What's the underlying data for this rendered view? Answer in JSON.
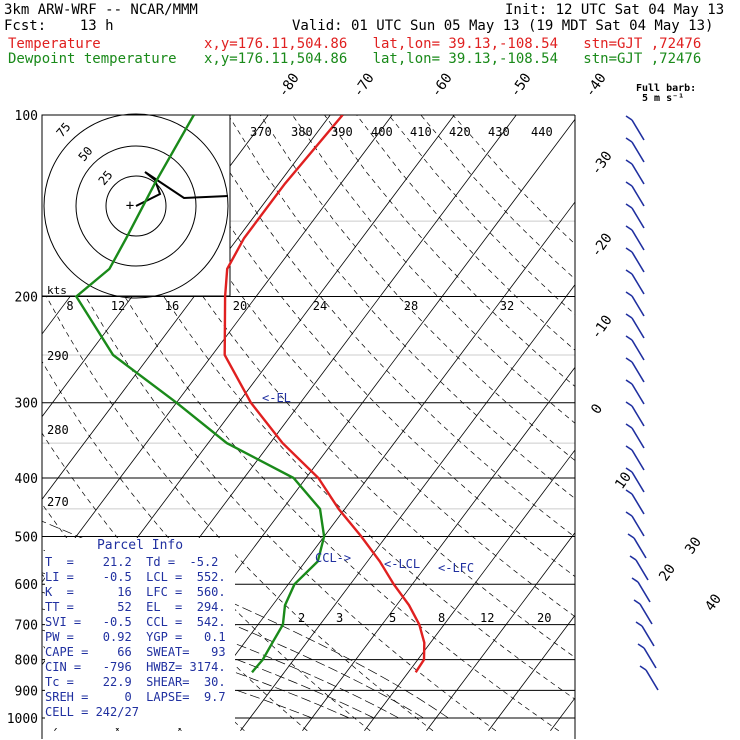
{
  "header": {
    "title": "3km ARW-WRF -- NCAR/MMM",
    "init": "Init: 12 UTC Sat 04 May 13",
    "fcst": "Fcst:    13 h",
    "valid": "Valid: 01 UTC Sun 05 May 13 (19 MDT Sat 04 May 13)",
    "temp_label": "Temperature",
    "dew_label": "Dewpoint temperature",
    "loc_temp": "x,y=176.11,504.86   lat,lon= 39.13,-108.54   stn=GJT ,72476",
    "loc_dew": "x,y=176.11,504.86   lat,lon= 39.13,-108.54   stn=GJT ,72476",
    "barb_legend_1": "Full barb:",
    "barb_legend_2": "5 m s⁻¹"
  },
  "chart_data": {
    "type": "line",
    "title": "",
    "pressure_levels": [
      "100",
      "200",
      "300",
      "400",
      "500",
      "600",
      "700",
      "800",
      "900",
      "1000"
    ],
    "isotherm_labels": [
      "-80",
      "-70",
      "-60",
      "-50",
      "-40",
      "-30",
      "-20",
      "-10",
      "0",
      "10",
      "20",
      "30",
      "40"
    ],
    "theta_labels": [
      "370",
      "380",
      "390",
      "400",
      "410",
      "420",
      "430",
      "440",
      "290",
      "280",
      "270"
    ],
    "mixing_ratio_labels": [
      "2",
      "3",
      "5",
      "8",
      "12",
      "20"
    ],
    "hodograph_speed_labels": [
      "75",
      "50",
      "25"
    ],
    "hodograph_axis_label": "kts",
    "hodograph_x_labels": [
      "8",
      "12",
      "16",
      "20",
      "24",
      "28",
      "32"
    ],
    "el_label": "<-EL",
    "lcl_label": "<-LCL",
    "lfc_label": "<-LFC",
    "ccl_label": "CCL->",
    "series": [
      {
        "name": "Temperature",
        "color": "#e02020",
        "points": [
          [
            100,
            -58
          ],
          [
            130,
            -59
          ],
          [
            160,
            -59
          ],
          [
            180,
            -58
          ],
          [
            200,
            -55
          ],
          [
            250,
            -48
          ],
          [
            300,
            -38
          ],
          [
            350,
            -28
          ],
          [
            400,
            -18
          ],
          [
            450,
            -11
          ],
          [
            500,
            -4
          ],
          [
            550,
            2
          ],
          [
            600,
            7
          ],
          [
            650,
            12
          ],
          [
            700,
            16
          ],
          [
            750,
            19
          ],
          [
            800,
            21
          ],
          [
            840,
            21.2
          ]
        ]
      },
      {
        "name": "Dewpoint temperature",
        "color": "#1a8a1a",
        "points": [
          [
            100,
            -82
          ],
          [
            130,
            -80
          ],
          [
            160,
            -78
          ],
          [
            180,
            -77
          ],
          [
            200,
            -79
          ],
          [
            250,
            -66
          ],
          [
            300,
            -50
          ],
          [
            350,
            -37
          ],
          [
            400,
            -22
          ],
          [
            450,
            -14
          ],
          [
            500,
            -10
          ],
          [
            550,
            -8
          ],
          [
            600,
            -9
          ],
          [
            650,
            -8
          ],
          [
            700,
            -6
          ],
          [
            750,
            -5.5
          ],
          [
            800,
            -5
          ],
          [
            840,
            -5.2
          ]
        ]
      }
    ]
  },
  "parcel": {
    "title": "Parcel Info",
    "rows": [
      "T  =    21.2  Td =  -5.2",
      "LI =    -0.5  LCL =  552.",
      "K  =      16  LFC =  560.",
      "TT =      52  EL  =  294.",
      "SVI =   -0.5  CCL =  542.",
      "PW =    0.92  YGP =   0.1",
      "CAPE =    66  SWEAT=   93",
      "CIN =   -796  HWBZ= 3174.",
      "Tc =    22.9  SHEAR=  30.",
      "SREH =     0  LAPSE=  9.7",
      "CELL = 242/27"
    ]
  },
  "colors": {
    "temperature": "#e02020",
    "dewpoint": "#1a8a1a",
    "annotation": "#2030a0",
    "barbs": "#2030a0"
  }
}
